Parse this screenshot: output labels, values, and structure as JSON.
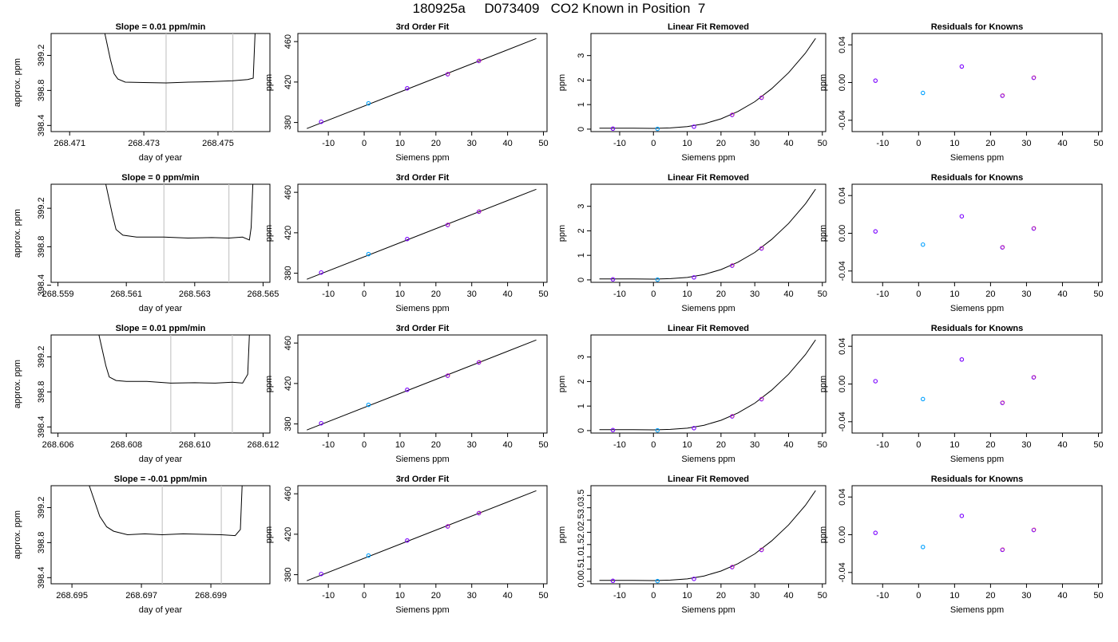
{
  "suptitle": "180925a     D073409   CO2 Known in Position  7",
  "colors": {
    "vline": "#c8c8c8",
    "trace": "#000000",
    "known_primary": "#7a00ff",
    "known_reference": "#00a0ff",
    "known_other": "#ff6060"
  },
  "chart_data": [
    {
      "type": "line",
      "title": "Slope =  0.01  ppm/min",
      "xlabel": "day of year",
      "ylabel": "approx. ppm",
      "xlim": [
        268.4705,
        268.4764
      ],
      "ylim": [
        398.33,
        399.45
      ],
      "xticks": [
        268.471,
        268.473,
        268.475
      ],
      "xtick_labels": [
        "268.471",
        "268.473",
        "268.475"
      ],
      "yticks": [
        398.4,
        398.8,
        399.2
      ],
      "ytick_labels": [
        "398.4",
        "398.8",
        "399.2"
      ],
      "vlines": [
        268.4736,
        268.4754
      ],
      "series": [
        {
          "x": [
            268.47195,
            268.4721,
            268.4722,
            268.4723,
            268.4725,
            268.473,
            268.4736,
            268.4742,
            268.4748,
            268.4754,
            268.4758,
            268.47595,
            268.476
          ],
          "y": [
            399.45,
            399.15,
            398.99,
            398.93,
            398.895,
            398.89,
            398.885,
            398.895,
            398.9,
            398.91,
            398.925,
            398.94,
            399.45
          ]
        }
      ]
    },
    {
      "type": "scatter",
      "title": "3rd Order Fit",
      "xlabel": "Siemens ppm",
      "ylabel": "ppm",
      "xlim": [
        -18.5,
        51
      ],
      "ylim": [
        371,
        468
      ],
      "xticks": [
        -10,
        0,
        10,
        20,
        30,
        40,
        50
      ],
      "xtick_labels": [
        "-10",
        "0",
        "10",
        "20",
        "30",
        "40",
        "50"
      ],
      "yticks": [
        380,
        420,
        460
      ],
      "ytick_labels": [
        "380",
        "420",
        "460"
      ],
      "fit_line": {
        "x": [
          -16,
          48
        ],
        "y": [
          374,
          463
        ]
      },
      "points": {
        "x": [
          -12,
          1.2,
          12,
          23.3,
          32
        ],
        "y": [
          380.7,
          398.9,
          413.8,
          427.7,
          440.8
        ]
      }
    },
    {
      "type": "line",
      "title": "Linear Fit Removed",
      "xlabel": "Siemens ppm",
      "ylabel": "ppm",
      "xlim": [
        -18.5,
        51
      ],
      "ylim": [
        -0.1,
        3.9
      ],
      "xticks": [
        -10,
        0,
        10,
        20,
        30,
        40,
        50
      ],
      "xtick_labels": [
        "-10",
        "0",
        "10",
        "20",
        "30",
        "40",
        "50"
      ],
      "yticks": [
        0,
        1,
        2,
        3
      ],
      "ytick_labels": [
        "0",
        "1",
        "2",
        "3"
      ],
      "curve": {
        "x": [
          -16,
          -12,
          -6,
          0,
          5,
          10,
          15,
          20,
          25,
          30,
          35,
          40,
          45,
          48
        ],
        "y": [
          0.04,
          0.04,
          0.04,
          0.03,
          0.05,
          0.1,
          0.22,
          0.42,
          0.72,
          1.12,
          1.65,
          2.3,
          3.1,
          3.7
        ]
      },
      "points": {
        "x": [
          -12,
          1.2,
          12,
          23.3,
          32
        ],
        "y": [
          0.02,
          0.01,
          0.1,
          0.58,
          1.28
        ]
      }
    },
    {
      "type": "scatter",
      "title": "Residuals for Knowns",
      "xlabel": "Siemens ppm",
      "ylabel": "ppm",
      "xlim": [
        -18.5,
        51
      ],
      "ylim": [
        -0.052,
        0.052
      ],
      "xticks": [
        -10,
        0,
        10,
        20,
        30,
        40,
        50
      ],
      "xtick_labels": [
        "-10",
        "0",
        "10",
        "20",
        "30",
        "40",
        "50"
      ],
      "yticks": [
        -0.04,
        0,
        0.04
      ],
      "ytick_labels": [
        "-0.04",
        "0.00",
        "0.04"
      ],
      "points": {
        "x": [
          -12,
          1.2,
          12,
          23.3,
          32
        ],
        "y": [
          0.002,
          -0.011,
          0.017,
          -0.014,
          0.005
        ]
      }
    },
    {
      "type": "line",
      "title": "Slope =  0  ppm/min",
      "xlabel": "day of year",
      "ylabel": "approx. ppm",
      "xlim": [
        268.5588,
        268.5652
      ],
      "ylim": [
        398.43,
        399.45
      ],
      "xticks": [
        268.559,
        268.561,
        268.563,
        268.565
      ],
      "xtick_labels": [
        "268.559",
        "268.561",
        "268.563",
        "268.565"
      ],
      "yticks": [
        398.4,
        398.8,
        399.2
      ],
      "ytick_labels": [
        "398.4",
        "398.8",
        "399.2"
      ],
      "vlines": [
        268.5621,
        268.564
      ],
      "series": [
        {
          "x": [
            268.5604,
            268.5606,
            268.5607,
            268.5609,
            268.5613,
            268.5621,
            268.5628,
            268.5635,
            268.564,
            268.5644,
            268.5646,
            268.56465,
            268.5647
          ],
          "y": [
            399.45,
            399.12,
            398.98,
            398.92,
            398.9,
            398.9,
            398.89,
            398.895,
            398.89,
            398.9,
            398.87,
            399.0,
            399.45
          ]
        }
      ]
    },
    {
      "type": "scatter",
      "title": "3rd Order Fit",
      "xlabel": "Siemens ppm",
      "ylabel": "ppm",
      "xlim": [
        -18.5,
        51
      ],
      "ylim": [
        371,
        468
      ],
      "xticks": [
        -10,
        0,
        10,
        20,
        30,
        40,
        50
      ],
      "xtick_labels": [
        "-10",
        "0",
        "10",
        "20",
        "30",
        "40",
        "50"
      ],
      "yticks": [
        380,
        420,
        460
      ],
      "ytick_labels": [
        "380",
        "420",
        "460"
      ],
      "fit_line": {
        "x": [
          -16,
          48
        ],
        "y": [
          374,
          463
        ]
      },
      "points": {
        "x": [
          -12,
          1.2,
          12,
          23.3,
          32
        ],
        "y": [
          380.7,
          398.9,
          413.8,
          427.7,
          440.8
        ]
      }
    },
    {
      "type": "line",
      "title": "Linear Fit Removed",
      "xlabel": "Siemens ppm",
      "ylabel": "ppm",
      "xlim": [
        -18.5,
        51
      ],
      "ylim": [
        -0.1,
        3.9
      ],
      "xticks": [
        -10,
        0,
        10,
        20,
        30,
        40,
        50
      ],
      "xtick_labels": [
        "-10",
        "0",
        "10",
        "20",
        "30",
        "40",
        "50"
      ],
      "yticks": [
        0,
        1,
        2,
        3
      ],
      "ytick_labels": [
        "0",
        "1",
        "2",
        "3"
      ],
      "curve": {
        "x": [
          -16,
          -12,
          -6,
          0,
          5,
          10,
          15,
          20,
          25,
          30,
          35,
          40,
          45,
          48
        ],
        "y": [
          0.04,
          0.04,
          0.04,
          0.03,
          0.05,
          0.1,
          0.22,
          0.42,
          0.72,
          1.12,
          1.65,
          2.3,
          3.1,
          3.7
        ]
      },
      "points": {
        "x": [
          -12,
          1.2,
          12,
          23.3,
          32
        ],
        "y": [
          0.02,
          0.01,
          0.1,
          0.58,
          1.28
        ]
      }
    },
    {
      "type": "scatter",
      "title": "Residuals for Knowns",
      "xlabel": "Siemens ppm",
      "ylabel": "ppm",
      "xlim": [
        -18.5,
        51
      ],
      "ylim": [
        -0.052,
        0.052
      ],
      "xticks": [
        -10,
        0,
        10,
        20,
        30,
        40,
        50
      ],
      "xtick_labels": [
        "-10",
        "0",
        "10",
        "20",
        "30",
        "40",
        "50"
      ],
      "yticks": [
        -0.04,
        0,
        0.04
      ],
      "ytick_labels": [
        "-0.04",
        "0.00",
        "0.04"
      ],
      "points": {
        "x": [
          -12,
          1.2,
          12,
          23.3,
          32
        ],
        "y": [
          0.002,
          -0.012,
          0.018,
          -0.015,
          0.005
        ]
      }
    },
    {
      "type": "line",
      "title": "Slope =  0.01  ppm/min",
      "xlabel": "day of year",
      "ylabel": "approx. ppm",
      "xlim": [
        268.6058,
        268.6122
      ],
      "ylim": [
        398.33,
        399.45
      ],
      "xticks": [
        268.606,
        268.608,
        268.61,
        268.612
      ],
      "xtick_labels": [
        "268.606",
        "268.608",
        "268.610",
        "268.612"
      ],
      "yticks": [
        398.4,
        398.8,
        399.2
      ],
      "ytick_labels": [
        "398.4",
        "398.8",
        "399.2"
      ],
      "vlines": [
        268.6093,
        268.6111
      ],
      "series": [
        {
          "x": [
            268.6072,
            268.6074,
            268.6075,
            268.6077,
            268.608,
            268.6086,
            268.6093,
            268.61,
            268.6106,
            268.6111,
            268.6114,
            268.61155,
            268.6116
          ],
          "y": [
            399.45,
            399.1,
            398.97,
            398.93,
            398.92,
            398.92,
            398.9,
            398.905,
            398.9,
            398.91,
            398.9,
            399.0,
            399.45
          ]
        }
      ]
    },
    {
      "type": "scatter",
      "title": "3rd Order Fit",
      "xlabel": "Siemens ppm",
      "ylabel": "ppm",
      "xlim": [
        -18.5,
        51
      ],
      "ylim": [
        371,
        468
      ],
      "xticks": [
        -10,
        0,
        10,
        20,
        30,
        40,
        50
      ],
      "xtick_labels": [
        "-10",
        "0",
        "10",
        "20",
        "30",
        "40",
        "50"
      ],
      "yticks": [
        380,
        420,
        460
      ],
      "ytick_labels": [
        "380",
        "420",
        "460"
      ],
      "fit_line": {
        "x": [
          -16,
          48
        ],
        "y": [
          374,
          463
        ]
      },
      "points": {
        "x": [
          -12,
          1.2,
          12,
          23.3,
          32
        ],
        "y": [
          380.7,
          398.9,
          413.8,
          427.7,
          440.8
        ]
      }
    },
    {
      "type": "line",
      "title": "Linear Fit Removed",
      "xlabel": "Siemens ppm",
      "ylabel": "ppm",
      "xlim": [
        -18.5,
        51
      ],
      "ylim": [
        -0.1,
        3.9
      ],
      "xticks": [
        -10,
        0,
        10,
        20,
        30,
        40,
        50
      ],
      "xtick_labels": [
        "-10",
        "0",
        "10",
        "20",
        "30",
        "40",
        "50"
      ],
      "yticks": [
        0,
        1,
        2,
        3
      ],
      "ytick_labels": [
        "0",
        "1",
        "2",
        "3"
      ],
      "curve": {
        "x": [
          -16,
          -12,
          -6,
          0,
          5,
          10,
          15,
          20,
          25,
          30,
          35,
          40,
          45,
          48
        ],
        "y": [
          0.04,
          0.04,
          0.04,
          0.03,
          0.05,
          0.1,
          0.22,
          0.42,
          0.72,
          1.12,
          1.65,
          2.3,
          3.1,
          3.7
        ]
      },
      "points": {
        "x": [
          -12,
          1.2,
          12,
          23.3,
          32
        ],
        "y": [
          0.02,
          0.01,
          0.1,
          0.58,
          1.28
        ]
      }
    },
    {
      "type": "scatter",
      "title": "Residuals for Knowns",
      "xlabel": "Siemens ppm",
      "ylabel": "ppm",
      "xlim": [
        -18.5,
        51
      ],
      "ylim": [
        -0.052,
        0.052
      ],
      "xticks": [
        -10,
        0,
        10,
        20,
        30,
        40,
        50
      ],
      "xtick_labels": [
        "-10",
        "0",
        "10",
        "20",
        "30",
        "40",
        "50"
      ],
      "yticks": [
        -0.04,
        0,
        0.04
      ],
      "ytick_labels": [
        "-0.04",
        "0.00",
        "0.04"
      ],
      "points": {
        "x": [
          -12,
          1.2,
          12,
          23.3,
          32
        ],
        "y": [
          0.003,
          -0.016,
          0.026,
          -0.02,
          0.007
        ]
      }
    },
    {
      "type": "line",
      "title": "Slope =  -0.01  ppm/min",
      "xlabel": "day of year",
      "ylabel": "approx. ppm",
      "xlim": [
        268.6944,
        268.7007
      ],
      "ylim": [
        398.33,
        399.45
      ],
      "xticks": [
        268.695,
        268.697,
        268.699
      ],
      "xtick_labels": [
        "268.695",
        "268.697",
        "268.699"
      ],
      "vlines": [
        268.6976,
        268.6993
      ],
      "yticks": [
        398.4,
        398.8,
        399.2
      ],
      "ytick_labels": [
        "398.4",
        "398.8",
        "399.2"
      ],
      "series": [
        {
          "x": [
            268.6955,
            268.6958,
            268.696,
            268.6962,
            268.6966,
            268.6971,
            268.6976,
            268.6982,
            268.6988,
            268.6993,
            268.6997,
            268.69985,
            268.6999
          ],
          "y": [
            399.45,
            399.1,
            398.98,
            398.93,
            398.89,
            398.9,
            398.89,
            398.9,
            398.895,
            398.89,
            398.88,
            398.95,
            399.45
          ]
        }
      ]
    },
    {
      "type": "scatter",
      "title": "3rd Order Fit",
      "xlabel": "Siemens ppm",
      "ylabel": "ppm",
      "xlim": [
        -18.5,
        51
      ],
      "ylim": [
        371,
        468
      ],
      "xticks": [
        -10,
        0,
        10,
        20,
        30,
        40,
        50
      ],
      "xtick_labels": [
        "-10",
        "0",
        "10",
        "20",
        "30",
        "40",
        "50"
      ],
      "yticks": [
        380,
        420,
        460
      ],
      "ytick_labels": [
        "380",
        "420",
        "460"
      ],
      "fit_line": {
        "x": [
          -16,
          48
        ],
        "y": [
          374,
          463
        ]
      },
      "points": {
        "x": [
          -12,
          1.2,
          12,
          23.3,
          32
        ],
        "y": [
          380.7,
          398.9,
          413.8,
          427.7,
          440.8
        ]
      }
    },
    {
      "type": "line",
      "title": "Linear Fit Removed",
      "xlabel": "Siemens ppm",
      "ylabel": "ppm",
      "xlim": [
        -18.5,
        51
      ],
      "ylim": [
        -0.1,
        3.9
      ],
      "xticks": [
        -10,
        0,
        10,
        20,
        30,
        40,
        50
      ],
      "xtick_labels": [
        "-10",
        "0",
        "10",
        "20",
        "30",
        "40",
        "50"
      ],
      "yticks": [
        0,
        0.5,
        1,
        1.5,
        2,
        2.5,
        3,
        3.5
      ],
      "ytick_labels": [
        "0.0",
        "0.5",
        "1.0",
        "1.5",
        "2.0",
        "2.5",
        "3.0",
        "3.5"
      ],
      "curve": {
        "x": [
          -16,
          -12,
          -6,
          0,
          5,
          10,
          15,
          20,
          25,
          30,
          35,
          40,
          45,
          48
        ],
        "y": [
          0.04,
          0.04,
          0.04,
          0.03,
          0.05,
          0.1,
          0.22,
          0.42,
          0.72,
          1.12,
          1.65,
          2.3,
          3.1,
          3.7
        ]
      },
      "points": {
        "x": [
          -12,
          1.2,
          12,
          23.3,
          32
        ],
        "y": [
          0.02,
          0.01,
          0.1,
          0.58,
          1.28
        ]
      }
    },
    {
      "type": "scatter",
      "title": "Residuals for Knowns",
      "xlabel": "Siemens ppm",
      "ylabel": "ppm",
      "xlim": [
        -18.5,
        51
      ],
      "ylim": [
        -0.052,
        0.052
      ],
      "xticks": [
        -10,
        0,
        10,
        20,
        30,
        40,
        50
      ],
      "xtick_labels": [
        "-10",
        "0",
        "10",
        "20",
        "30",
        "40",
        "50"
      ],
      "yticks": [
        -0.04,
        0,
        0.04
      ],
      "ytick_labels": [
        "-0.04",
        "0.00",
        "0.04"
      ],
      "points": {
        "x": [
          -12,
          1.2,
          12,
          23.3,
          32
        ],
        "y": [
          0.002,
          -0.013,
          0.02,
          -0.016,
          0.005
        ]
      }
    }
  ]
}
